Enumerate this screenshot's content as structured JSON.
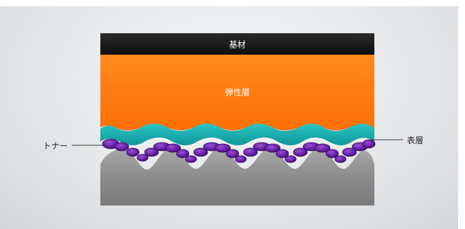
{
  "labels": {
    "substrate": "基材",
    "elastic_layer": "弾性層",
    "toner": "トナー",
    "surface_layer": "表層"
  },
  "colors": {
    "substrate": "#1c1c1c",
    "elastic_layer": "#ff7a12",
    "surface_layer": "#19aeb0",
    "toner": "#6a22a8",
    "base": "#8a8a8a"
  }
}
